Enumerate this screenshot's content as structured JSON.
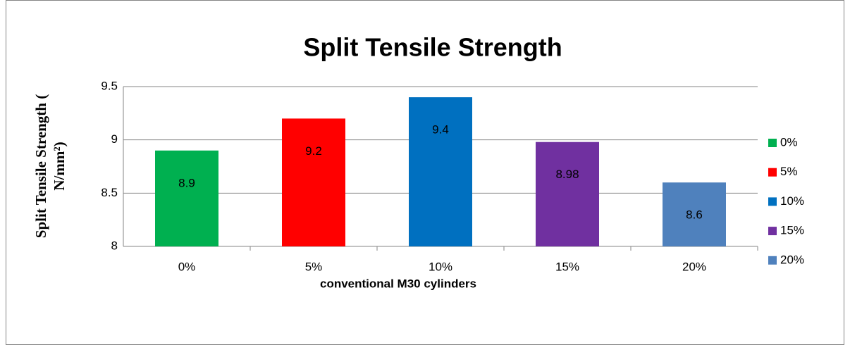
{
  "chart_data": {
    "type": "bar",
    "title": "Split Tensile Strength",
    "x_label": "conventional M30 cylinders",
    "y_label": [
      "Split Tensile Strength (",
      "N/mm²)"
    ],
    "categories": [
      "0%",
      "5%",
      "10%",
      "15%",
      "20%"
    ],
    "values": [
      8.9,
      9.2,
      9.4,
      8.98,
      8.6
    ],
    "colors": [
      "#00b050",
      "#ff0000",
      "#0070c0",
      "#7030a0",
      "#4f81bd"
    ],
    "ylim": [
      8,
      9.5
    ],
    "yticks": [
      8,
      8.5,
      9,
      9.5
    ],
    "grid": true,
    "legend": "right"
  }
}
